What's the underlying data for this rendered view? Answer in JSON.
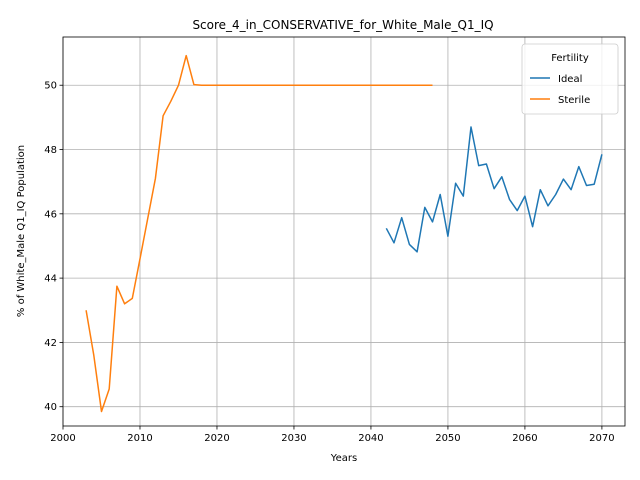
{
  "chart_data": {
    "type": "line",
    "title": "Score_4_in_CONSERVATIVE_for_White_Male_Q1_IQ",
    "xlabel": "Years",
    "ylabel": "% of White_Male Q1_IQ Population",
    "xlim": [
      2000,
      2073
    ],
    "ylim": [
      39.4,
      51.5
    ],
    "xticks": [
      2000,
      2010,
      2020,
      2030,
      2040,
      2050,
      2060,
      2070
    ],
    "yticks": [
      40,
      42,
      44,
      46,
      48,
      50
    ],
    "grid": true,
    "legend": {
      "title": "Fertility",
      "placement": "top-right"
    },
    "series": [
      {
        "name": "Ideal",
        "color": "#1f77b4",
        "x": [
          2042,
          2043,
          2044,
          2045,
          2046,
          2047,
          2048,
          2049,
          2050,
          2051,
          2052,
          2053,
          2054,
          2055,
          2056,
          2057,
          2058,
          2059,
          2060,
          2061,
          2062,
          2063,
          2064,
          2065,
          2066,
          2067,
          2068,
          2069,
          2070
        ],
        "y": [
          45.55,
          45.1,
          45.88,
          45.05,
          44.82,
          46.2,
          45.75,
          46.6,
          45.3,
          46.95,
          46.55,
          48.7,
          47.5,
          47.55,
          46.78,
          47.15,
          46.45,
          46.1,
          46.55,
          45.6,
          46.75,
          46.25,
          46.6,
          47.08,
          46.75,
          47.47,
          46.88,
          46.92,
          47.85
        ]
      },
      {
        "name": "Sterile",
        "color": "#ff7f0e",
        "x": [
          2003,
          2004,
          2005,
          2006,
          2007,
          2008,
          2009,
          2010,
          2011,
          2012,
          2013,
          2014,
          2015,
          2016,
          2017,
          2018,
          2020,
          2025,
          2030,
          2035,
          2040,
          2045,
          2048
        ],
        "y": [
          43.0,
          41.6,
          39.85,
          40.55,
          43.75,
          43.2,
          43.37,
          44.6,
          45.85,
          47.1,
          49.05,
          49.5,
          50.0,
          50.92,
          50.02,
          50.0,
          50.0,
          50.0,
          50.0,
          50.0,
          50.0,
          50.0,
          50.0
        ]
      }
    ]
  }
}
